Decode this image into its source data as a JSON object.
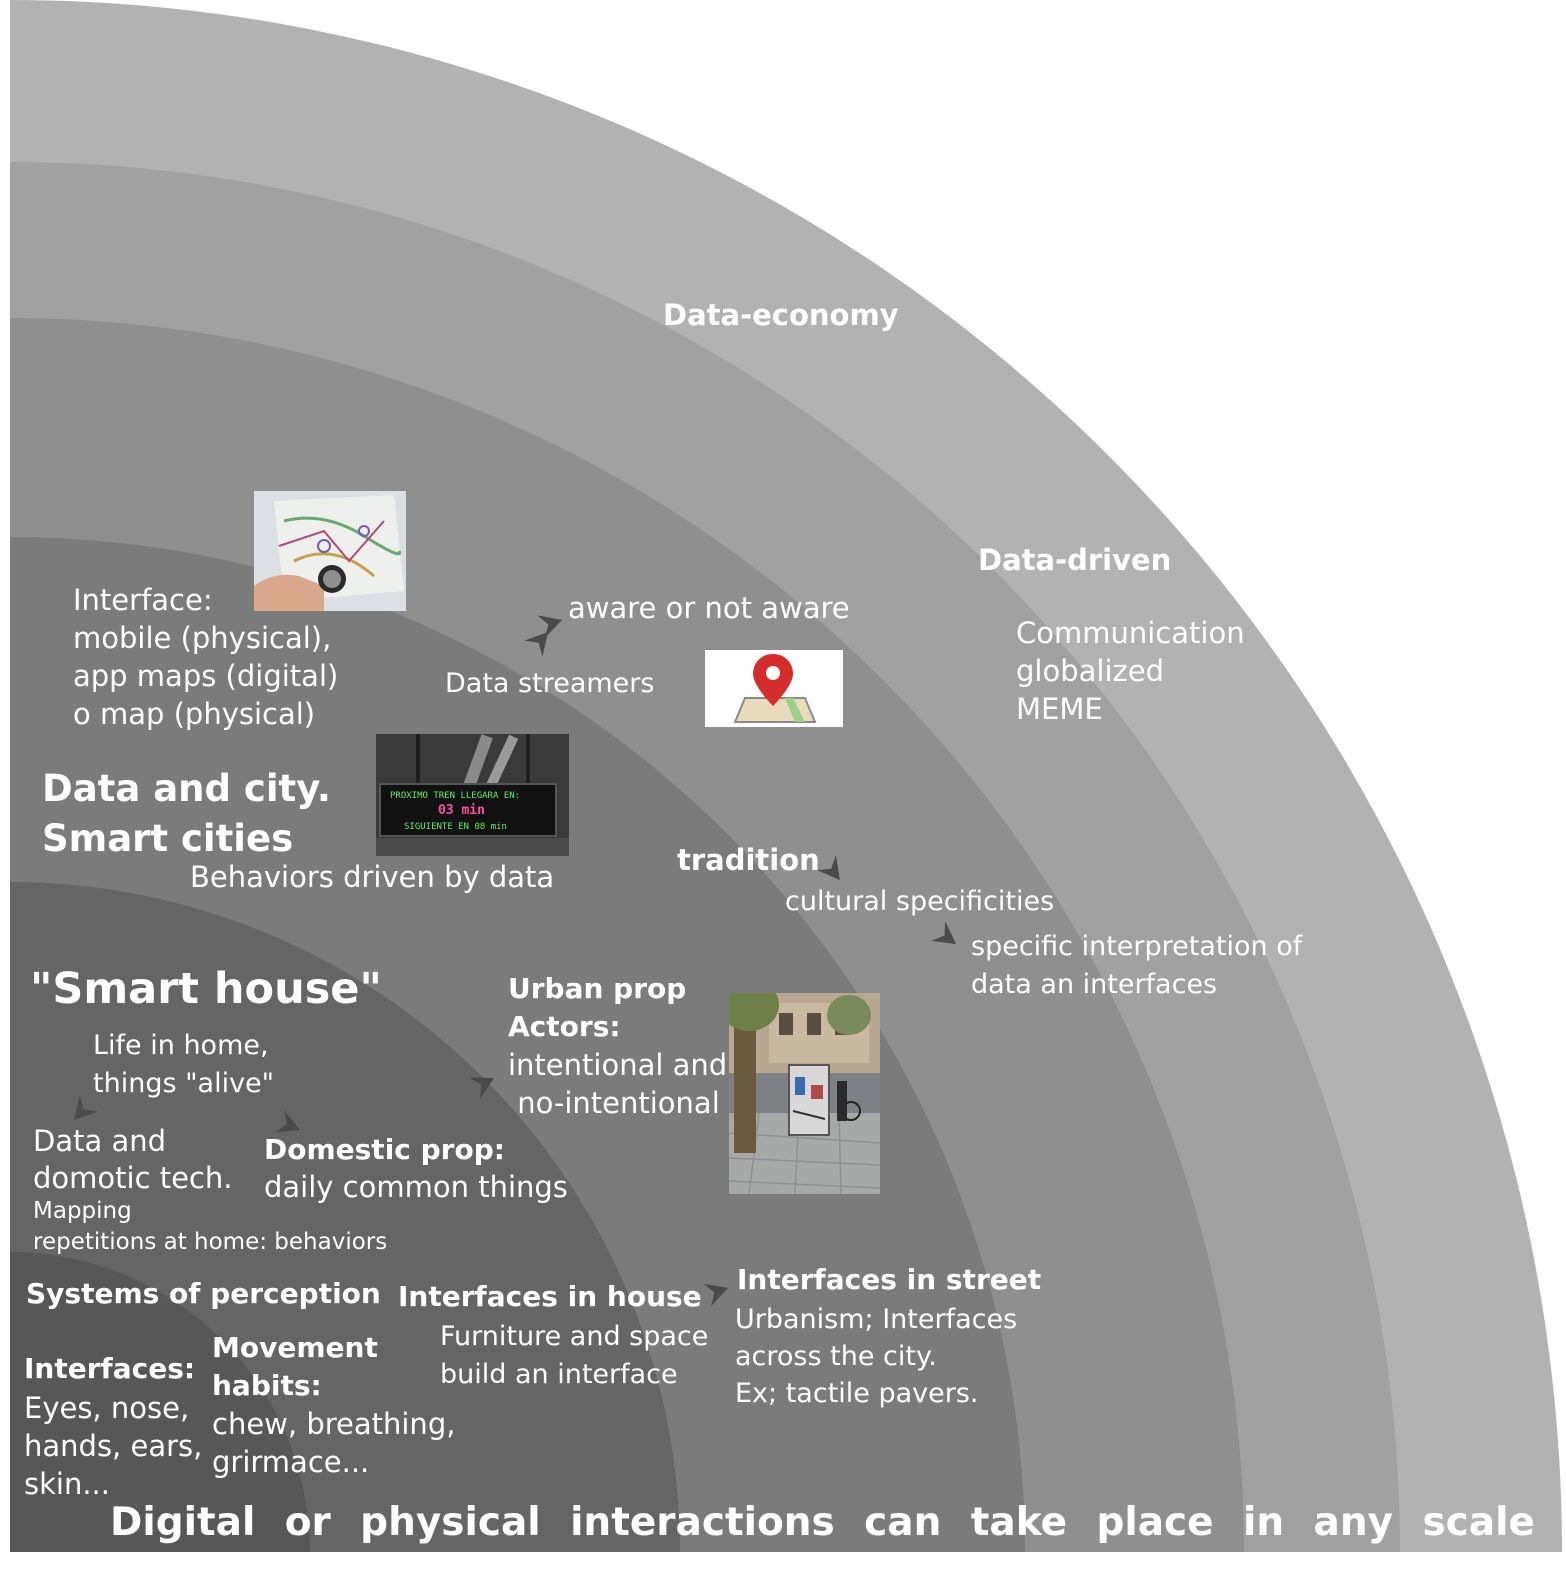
{
  "rings": {
    "data_economy": {
      "title": "Data-economy",
      "color": "#b2b2b2"
    },
    "data_driven": {
      "title": "Data-driven",
      "lines": [
        "Communication",
        "globalized",
        "MEME"
      ],
      "color": "#a1a1a1"
    },
    "data_city": {
      "title_lines": [
        "Data and city.",
        "Smart cities"
      ],
      "subtitle": "Behaviors driven by data",
      "color": "#8f8f8f"
    },
    "smart_house": {
      "title": "\"Smart house\"",
      "color": "#7b7b7b"
    },
    "perception": {
      "title": "Systems of perception",
      "color": "#656565"
    }
  },
  "notes": {
    "interface_mobile": [
      "Interface:",
      "mobile (physical),",
      "app maps (digital)",
      "o map (physical)"
    ],
    "aware": "aware or not aware",
    "data_streamers": "Data streamers",
    "tradition": "tradition",
    "cultural": "cultural specificities",
    "specific_interpretation": [
      "specific interpretation of",
      "data an interfaces"
    ],
    "life_in_home": [
      "Life in home,",
      "things \"alive\""
    ],
    "data_domotic": [
      "Data and",
      "domotic tech."
    ],
    "mapping": [
      "Mapping",
      "repetitions at home: behaviors"
    ],
    "domestic_prop_title": "Domestic prop:",
    "domestic_prop_text": "daily common things",
    "urban_prop_title": [
      "Urban prop",
      "Actors:"
    ],
    "urban_prop_text": [
      "intentional and",
      " no-intentional"
    ],
    "interfaces_house_title": "Interfaces in house",
    "interfaces_house_text": [
      "Furniture and space",
      "build an interface"
    ],
    "interfaces_street_title": "Interfaces in street",
    "interfaces_street_text": [
      "Urbanism; Interfaces",
      "across the city.",
      "Ex; tactile pavers."
    ],
    "interfaces_body_title": "Interfaces:",
    "interfaces_body_text": [
      "Eyes, nose,",
      "hands, ears,",
      "skin..."
    ],
    "movement_title": [
      "Movement",
      "habits:"
    ],
    "movement_text": [
      "chew, breathing,",
      "grirmace..."
    ]
  },
  "footer": {
    "words": [
      "Digital",
      "or",
      "physical",
      "interactions",
      "can",
      "take",
      "place",
      "in",
      "any",
      "scale"
    ]
  },
  "sign_text": {
    "line1": "PROXIMO TREN LLEGARA EN:",
    "line2": "03 min",
    "line3": "SIGUIENTE EN 08 min"
  },
  "colors": {
    "ring6": "#575757",
    "ring7": "#464646",
    "pin": "#d62c2c"
  }
}
